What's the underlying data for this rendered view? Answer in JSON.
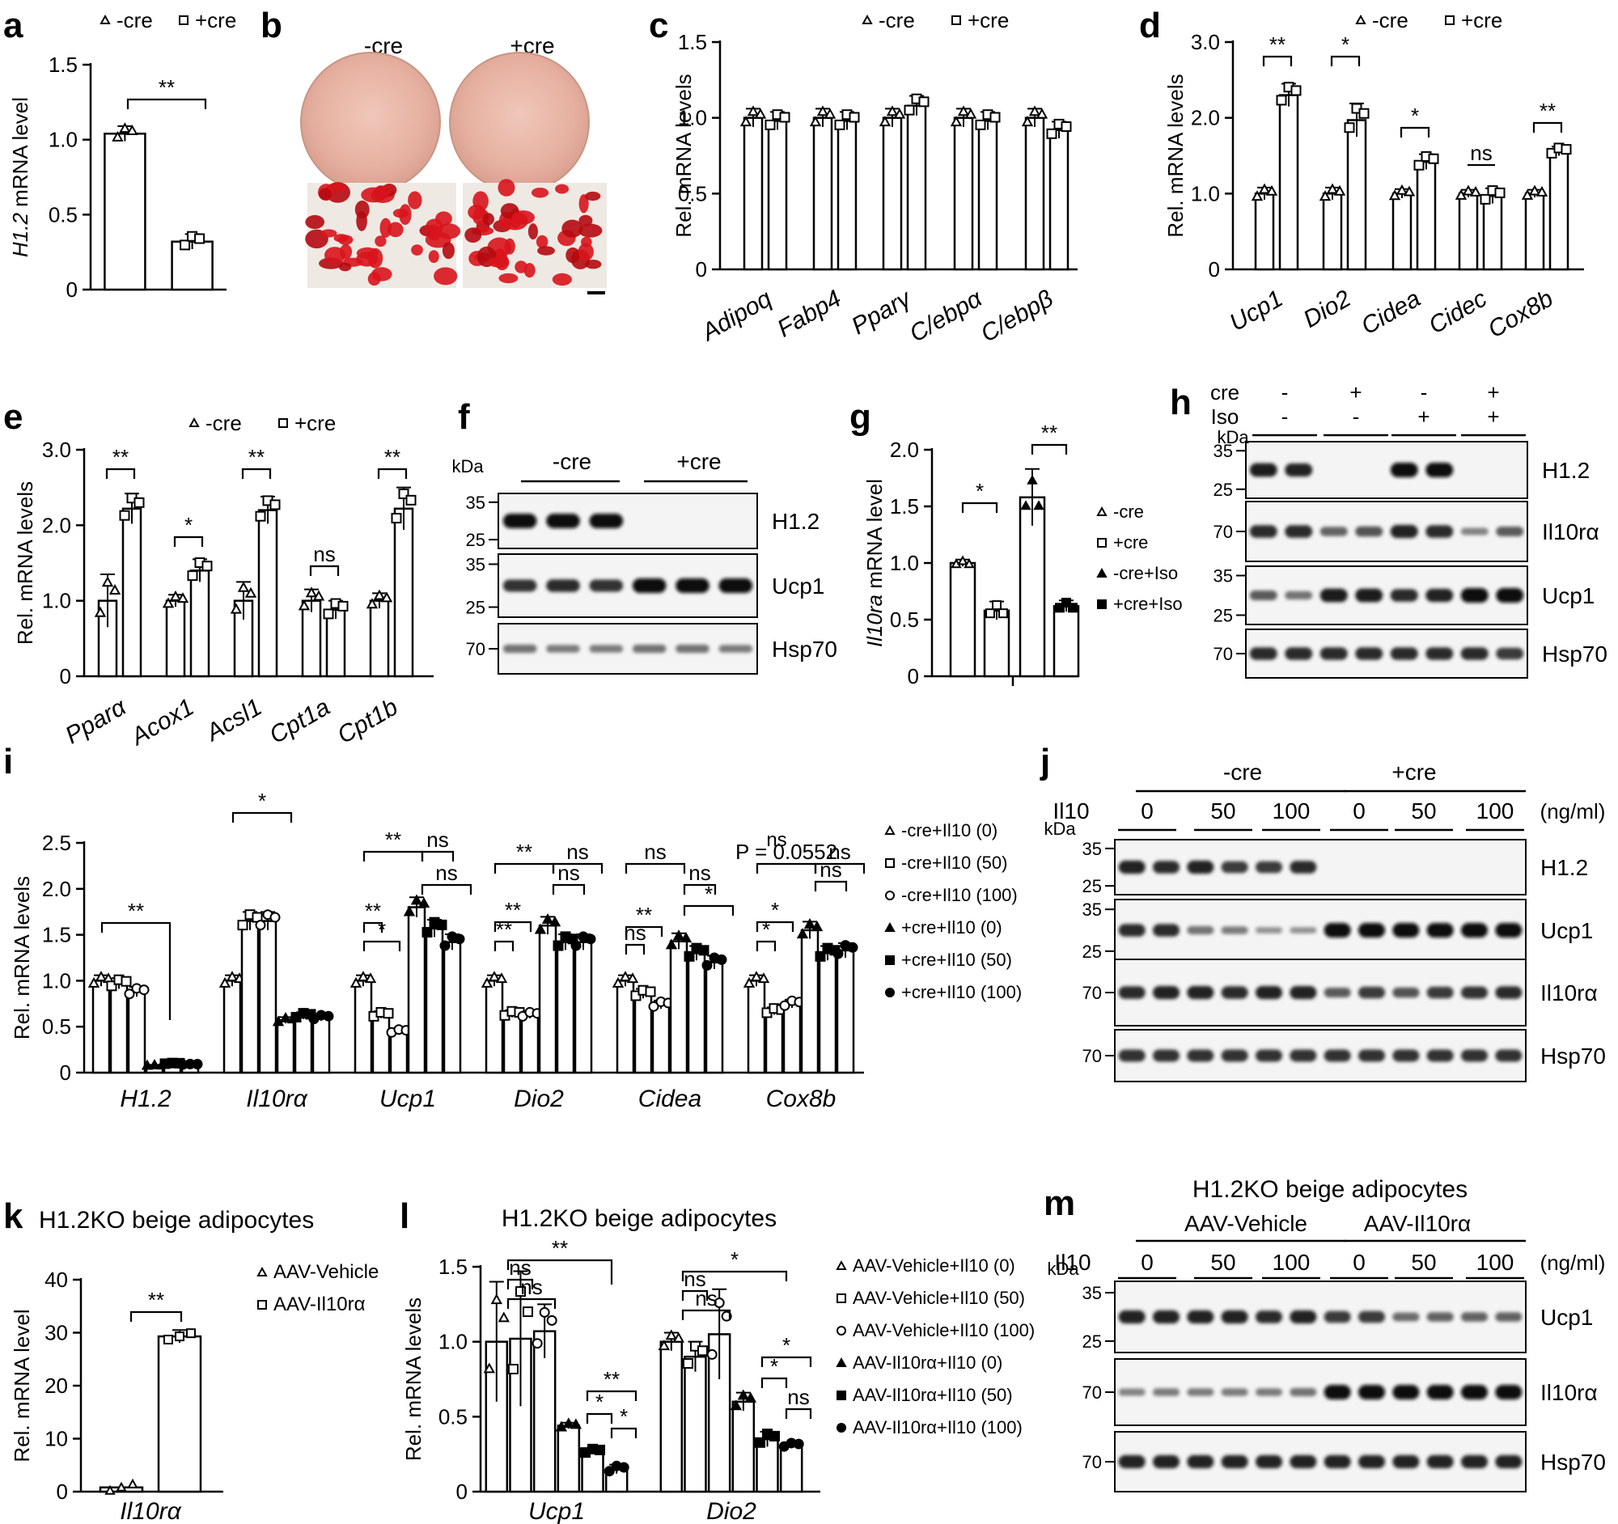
{
  "figure": {
    "panel_letters": [
      "a",
      "b",
      "c",
      "d",
      "e",
      "f",
      "g",
      "h",
      "i",
      "j",
      "k",
      "l",
      "m"
    ]
  },
  "chart_data": [
    {
      "id": "a",
      "type": "bar",
      "legend": [
        "-cre",
        "+cre"
      ],
      "ylabel_italic": "H1.2",
      "ylabel_rest": " mRNA level",
      "yticks": [
        "0",
        "0.5",
        "1.0",
        "1.5"
      ],
      "ylim": [
        0,
        1.5
      ],
      "categories": [
        ""
      ],
      "series": [
        {
          "name": "-cre",
          "values": [
            1.04
          ]
        },
        {
          "name": "+cre",
          "values": [
            0.32
          ]
        }
      ],
      "annotations": [
        "**"
      ]
    },
    {
      "id": "c",
      "type": "bar",
      "legend": [
        "-cre",
        "+cre"
      ],
      "ylabel": "Rel. mRNA levels",
      "yticks": [
        "0",
        "0.5",
        "1.0",
        "1.5"
      ],
      "ylim": [
        0,
        1.5
      ],
      "categories": [
        "Adipoq",
        "Fabp4",
        "Pparγ",
        "C/ebpα",
        "C/ebpβ"
      ],
      "series": [
        {
          "name": "-cre",
          "values": [
            1.0,
            1.0,
            1.0,
            1.0,
            1.0
          ]
        },
        {
          "name": "+cre",
          "values": [
            0.98,
            0.98,
            1.08,
            0.98,
            0.92
          ]
        }
      ]
    },
    {
      "id": "d",
      "type": "bar",
      "legend": [
        "-cre",
        "+cre"
      ],
      "ylabel": "Rel. mRNA levels",
      "yticks": [
        "0",
        "1.0",
        "2.0",
        "3.0"
      ],
      "ylim": [
        0,
        3.0
      ],
      "categories": [
        "Ucp1",
        "Dio2",
        "Cidea",
        "Cidec",
        "Cox8b"
      ],
      "series": [
        {
          "name": "-cre",
          "values": [
            1.0,
            1.0,
            1.0,
            1.0,
            1.0
          ]
        },
        {
          "name": "+cre",
          "values": [
            2.3,
            1.97,
            1.42,
            0.97,
            1.56
          ]
        }
      ],
      "annotations": [
        "**",
        "*",
        "*",
        "ns",
        "**"
      ]
    },
    {
      "id": "e",
      "type": "bar",
      "legend": [
        "-cre",
        "+cre"
      ],
      "ylabel": "Rel. mRNA levels",
      "yticks": [
        "0",
        "1.0",
        "2.0",
        "3.0"
      ],
      "ylim": [
        0,
        3.0
      ],
      "categories": [
        "Pparα",
        "Acox1",
        "Acsl1",
        "Cpt1a",
        "Cpt1b"
      ],
      "series": [
        {
          "name": "-cre",
          "values": [
            1.0,
            1.0,
            1.0,
            1.0,
            1.0
          ]
        },
        {
          "name": "+cre",
          "values": [
            2.22,
            1.4,
            2.2,
            0.88,
            2.22
          ]
        }
      ],
      "annotations": [
        "**",
        "*",
        "**",
        "ns",
        "**"
      ]
    },
    {
      "id": "g",
      "type": "bar",
      "legend": [
        "-cre",
        "+cre",
        "-cre+Iso",
        "+cre+Iso"
      ],
      "ylabel_italic": "Il10ra",
      "ylabel_rest": " mRNA level",
      "yticks": [
        "0",
        "0.5",
        "1.0",
        "1.5",
        "2.0"
      ],
      "ylim": [
        0,
        2.0
      ],
      "series": [
        {
          "name": "-cre",
          "values": [
            1.0
          ]
        },
        {
          "name": "+cre",
          "values": [
            0.58
          ]
        },
        {
          "name": "-cre+Iso",
          "values": [
            1.58
          ]
        },
        {
          "name": "+cre+Iso",
          "values": [
            0.62
          ]
        }
      ],
      "annotations": [
        "*",
        "**"
      ]
    },
    {
      "id": "i",
      "type": "bar",
      "legend": [
        "-cre+Il10 (0)",
        "-cre+Il10 (50)",
        "-cre+Il10 (100)",
        "+cre+Il10 (0)",
        "+cre+Il10 (50)",
        "+cre+Il10 (100)"
      ],
      "ylabel": "Rel. mRNA levels",
      "yticks": [
        "0",
        "0.5",
        "1.0",
        "1.5",
        "2.0",
        "2.5"
      ],
      "ylim": [
        0,
        2.5
      ],
      "categories": [
        "H1.2",
        "Il10rα",
        "Ucp1",
        "Dio2",
        "Cidea",
        "Cox8b"
      ],
      "series": [
        {
          "name": "-cre+Il10 (0)",
          "values": [
            1.0,
            1.0,
            1.0,
            1.0,
            1.0,
            1.0
          ]
        },
        {
          "name": "-cre+Il10 (50)",
          "values": [
            0.97,
            1.65,
            0.63,
            0.64,
            0.86,
            0.67
          ]
        },
        {
          "name": "-cre+Il10 (100)",
          "values": [
            0.88,
            1.65,
            0.45,
            0.63,
            0.74,
            0.75
          ]
        },
        {
          "name": "+cre+Il10 (0)",
          "values": [
            0.08,
            0.57,
            1.8,
            1.6,
            1.43,
            1.55
          ]
        },
        {
          "name": "+cre+Il10 (50)",
          "values": [
            0.1,
            0.62,
            1.57,
            1.42,
            1.3,
            1.3
          ]
        },
        {
          "name": "+cre+Il10 (100)",
          "values": [
            0.09,
            0.6,
            1.42,
            1.42,
            1.2,
            1.33
          ]
        }
      ],
      "annotations": [
        "**",
        "*",
        "**",
        "ns",
        "ns",
        "**",
        "*",
        "**",
        "ns",
        "ns",
        "**",
        "**",
        "ns",
        "ns",
        "*",
        "**",
        "ns",
        "ns",
        "P = 0.0552",
        "*",
        "*",
        "ns",
        "ns"
      ]
    },
    {
      "id": "k",
      "type": "bar",
      "title": "H1.2KO beige adipocytes",
      "legend": [
        "AAV-Vehicle",
        "AAV-Il10rα"
      ],
      "ylabel": "Rel. mRNA level",
      "yticks": [
        "0",
        "10",
        "20",
        "30",
        "40"
      ],
      "ylim": [
        0,
        40
      ],
      "categories": [
        "Il10rα"
      ],
      "series": [
        {
          "name": "AAV-Vehicle",
          "values": [
            0.8
          ]
        },
        {
          "name": "AAV-Il10rα",
          "values": [
            29.3
          ]
        }
      ],
      "annotations": [
        "**"
      ]
    },
    {
      "id": "l",
      "type": "bar",
      "title": "H1.2KO beige adipocytes",
      "legend": [
        "AAV-Vehicle+Il10 (0)",
        "AAV-Vehicle+Il10 (50)",
        "AAV-Vehicle+Il10 (100)",
        "AAV-Il10rα+Il10 (0)",
        "AAV-Il10rα+Il10 (50)",
        "AAV-Il10rα+Il10 (100)"
      ],
      "ylabel": "Rel. mRNA levels",
      "yticks": [
        "0",
        "0.5",
        "1.0",
        "1.5"
      ],
      "ylim": [
        0,
        1.5
      ],
      "categories": [
        "Ucp1",
        "Dio2"
      ],
      "series": [
        {
          "name": "AAV-Vehicle+Il10 (0)",
          "values": [
            1.0,
            1.0
          ]
        },
        {
          "name": "AAV-Vehicle+Il10 (50)",
          "values": [
            1.02,
            0.9
          ]
        },
        {
          "name": "AAV-Vehicle+Il10 (100)",
          "values": [
            1.07,
            1.05
          ]
        },
        {
          "name": "AAV-Il10rα+Il10 (0)",
          "values": [
            0.44,
            0.6
          ]
        },
        {
          "name": "AAV-Il10rα+Il10 (50)",
          "values": [
            0.27,
            0.35
          ]
        },
        {
          "name": "AAV-Il10rα+Il10 (100)",
          "values": [
            0.15,
            0.31
          ]
        }
      ],
      "annotations": [
        "**",
        "ns",
        "ns",
        "**",
        "*",
        "*",
        "*",
        "ns",
        "ns",
        "*",
        "*",
        "ns"
      ]
    }
  ],
  "image_b": {
    "labels": [
      "-cre",
      "+cre"
    ]
  },
  "blot_f": {
    "kda": "kDa",
    "groups": [
      "-cre",
      "+cre"
    ],
    "rows": [
      {
        "label": "H1.2",
        "markers": [
          "35",
          "25"
        ],
        "bands": [
          1,
          1,
          1,
          0,
          0,
          0
        ]
      },
      {
        "label": "Ucp1",
        "markers": [
          "35",
          "25"
        ],
        "bands": [
          0.75,
          0.8,
          0.75,
          1,
          1,
          1
        ]
      },
      {
        "label": "Hsp70",
        "markers": [
          "70"
        ],
        "bands": [
          0.35,
          0.3,
          0.3,
          0.35,
          0.35,
          0.3
        ]
      }
    ]
  },
  "blot_h": {
    "kda": "kDa",
    "conditions": [
      {
        "label": "cre",
        "values": [
          "-",
          "+",
          "-",
          "+"
        ]
      },
      {
        "label": "Iso",
        "values": [
          "-",
          "-",
          "+",
          "+"
        ]
      }
    ],
    "rows": [
      {
        "label": "H1.2",
        "markers": [
          "35",
          "25"
        ],
        "bands": [
          0.9,
          0.85,
          0,
          0,
          1,
          1,
          0,
          0
        ]
      },
      {
        "label": "Il10rα",
        "markers": [
          "70"
        ],
        "bands": [
          0.8,
          0.8,
          0.45,
          0.55,
          0.85,
          0.8,
          0.25,
          0.5
        ]
      },
      {
        "label": "Ucp1",
        "markers": [
          "35",
          "25"
        ],
        "bands": [
          0.5,
          0.35,
          0.9,
          0.9,
          0.8,
          0.85,
          1,
          1
        ]
      },
      {
        "label": "Hsp70",
        "markers": [
          "70"
        ],
        "bands": [
          0.8,
          0.8,
          0.8,
          0.8,
          0.8,
          0.8,
          0.8,
          0.7
        ]
      }
    ]
  },
  "blot_j": {
    "kda": "kDa",
    "il10": "Il10",
    "unit": "(ng/ml)",
    "groups": [
      "-cre",
      "+cre"
    ],
    "doses": [
      "0",
      "50",
      "100",
      "0",
      "50",
      "100"
    ],
    "rows": [
      {
        "label": "H1.2",
        "markers": [
          "35",
          "25"
        ],
        "bands": [
          0.85,
          0.8,
          0.85,
          0.7,
          0.7,
          0.8,
          0,
          0,
          0,
          0,
          0,
          0
        ]
      },
      {
        "label": "Ucp1",
        "markers": [
          "35",
          "25"
        ],
        "bands": [
          0.8,
          0.8,
          0.35,
          0.3,
          0.15,
          0.15,
          1,
          1,
          1,
          1,
          1,
          1
        ]
      },
      {
        "label": "Il10rα",
        "markers": [
          "70"
        ],
        "bands": [
          0.8,
          0.85,
          0.85,
          0.8,
          0.85,
          0.85,
          0.5,
          0.7,
          0.55,
          0.7,
          0.75,
          0.8
        ]
      },
      {
        "label": "Hsp70",
        "markers": [
          "70"
        ],
        "bands": [
          0.75,
          0.75,
          0.75,
          0.75,
          0.75,
          0.75,
          0.75,
          0.75,
          0.75,
          0.75,
          0.75,
          0.75
        ]
      }
    ]
  },
  "blot_m": {
    "title": "H1.2KO beige adipocytes",
    "kda": "kDa",
    "il10": "Il10",
    "unit": "(ng/ml)",
    "groups": [
      "AAV-Vehicle",
      "AAV-Il10rα"
    ],
    "doses": [
      "0",
      "50",
      "100",
      "0",
      "50",
      "100"
    ],
    "rows": [
      {
        "label": "Ucp1",
        "markers": [
          "35",
          "25"
        ],
        "bands": [
          0.85,
          0.85,
          0.85,
          0.85,
          0.8,
          0.85,
          0.7,
          0.7,
          0.4,
          0.45,
          0.45,
          0.45
        ]
      },
      {
        "label": "Il10rα",
        "markers": [
          "70"
        ],
        "bands": [
          0.25,
          0.3,
          0.3,
          0.3,
          0.3,
          0.35,
          1,
          1,
          1,
          1,
          1,
          1
        ]
      },
      {
        "label": "Hsp70",
        "markers": [
          "70"
        ],
        "bands": [
          0.85,
          0.85,
          0.85,
          0.85,
          0.85,
          0.85,
          0.85,
          0.85,
          0.85,
          0.85,
          0.85,
          0.85
        ]
      }
    ]
  }
}
